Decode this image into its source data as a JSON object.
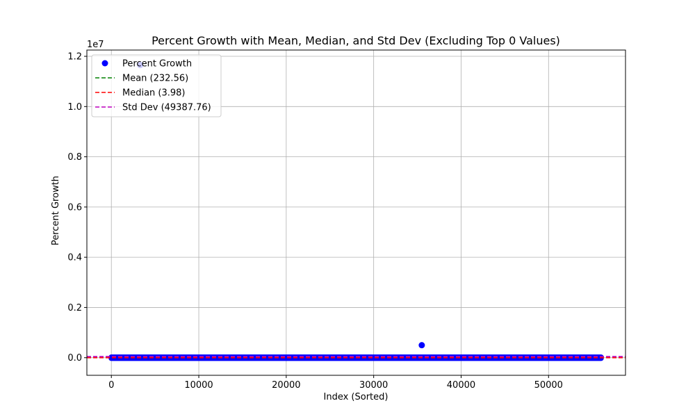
{
  "chart_data": {
    "type": "scatter",
    "title": "Percent Growth with Mean, Median, and Std Dev (Excluding Top 0 Values)",
    "xlabel": "Index (Sorted)",
    "ylabel": "Percent Growth",
    "y_offset_label": "1e7",
    "xlim": [
      -2800,
      58800
    ],
    "ylim": [
      -700000,
      12250000
    ],
    "x_ticks": [
      0,
      10000,
      20000,
      30000,
      40000,
      50000
    ],
    "x_tick_labels": [
      "0",
      "10000",
      "20000",
      "30000",
      "40000",
      "50000"
    ],
    "y_ticks": [
      0,
      2000000,
      4000000,
      6000000,
      8000000,
      10000000,
      12000000
    ],
    "y_tick_labels": [
      "0.0",
      "0.2",
      "0.4",
      "0.6",
      "0.8",
      "1.0",
      "1.2"
    ],
    "grid": true,
    "legend_position": "top-left",
    "series": [
      {
        "name": "Percent Growth",
        "kind": "scatter",
        "color": "#0000ff",
        "dense_band": {
          "x_start": 0,
          "x_end": 56000,
          "y_min": -20000,
          "y_max": 20000
        },
        "points": [
          {
            "x": 3300,
            "y": 11650000
          },
          {
            "x": 35500,
            "y": 500000
          }
        ]
      },
      {
        "name": "Mean (232.56)",
        "kind": "hline",
        "value": 232.56,
        "color": "#008000"
      },
      {
        "name": "Median (3.98)",
        "kind": "hline",
        "value": 3.98,
        "color": "#ff0000"
      },
      {
        "name": "Std Dev (49387.76)",
        "kind": "hline",
        "value": 49387.76,
        "color": "#bf00bf"
      }
    ]
  }
}
